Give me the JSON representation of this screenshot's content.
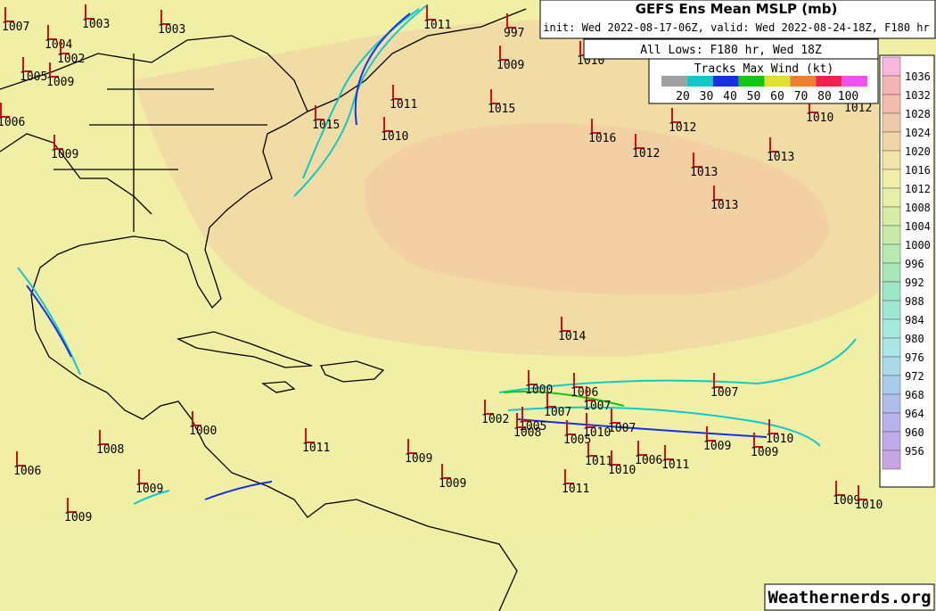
{
  "header": {
    "title": "GEFS Ens Mean MSLP (mb)",
    "subtitle": "init: Wed 2022-08-17-06Z, valid: Wed 2022-08-24-18Z, F180 hr",
    "lows_title": "All Lows: F180 hr, Wed 18Z"
  },
  "track_legend": {
    "title": "Tracks Max Wind (kt)",
    "labels": [
      20,
      30,
      40,
      50,
      60,
      70,
      80,
      100
    ],
    "colors": [
      "#a0a0a0",
      "#10c8c8",
      "#1830e0",
      "#10c810",
      "#e0e030",
      "#f08030",
      "#f02050",
      "#f050f0"
    ]
  },
  "colorbar": {
    "labels": [
      1036,
      1032,
      1028,
      1024,
      1020,
      1016,
      1012,
      1008,
      1004,
      1000,
      996,
      992,
      988,
      984,
      980,
      976,
      972,
      968,
      964,
      960,
      956
    ],
    "colors": [
      "#f8b8dc",
      "#f4b4b8",
      "#f2bcae",
      "#f2c8aa",
      "#f2d6a8",
      "#f2e4a8",
      "#f2f0a8",
      "#e6f0a6",
      "#d6eea4",
      "#c6eca8",
      "#b6eab0",
      "#a6e8ba",
      "#9ce8c6",
      "#9ce8d2",
      "#a4eade",
      "#aae6e6",
      "#aadaea",
      "#aaccec",
      "#b0bcec",
      "#b8b2ec",
      "#c0aaea",
      "#c8a6e6"
    ]
  },
  "lows": [
    "1007",
    "1003",
    "1003",
    "1004",
    "1002",
    "1005",
    "1009",
    "1006",
    "1009",
    "1011",
    "997",
    "1009",
    "1010",
    "1011",
    "1015",
    "1015",
    "1010",
    "1016",
    "1012",
    "1012",
    "1013",
    "1013",
    "1013",
    "1010",
    "1012",
    "1014",
    "1000",
    "1006",
    "1007",
    "1007",
    "1007",
    "1002",
    "1005",
    "1008",
    "1007",
    "1010",
    "1005",
    "1010",
    "1009",
    "1009",
    "1011",
    "1010",
    "1006",
    "1011",
    "1011",
    "1000",
    "1008",
    "1011",
    "1006",
    "1009",
    "1009",
    "1009",
    "1009",
    "1009",
    "1010"
  ],
  "watermark": "Weathernerds.org"
}
